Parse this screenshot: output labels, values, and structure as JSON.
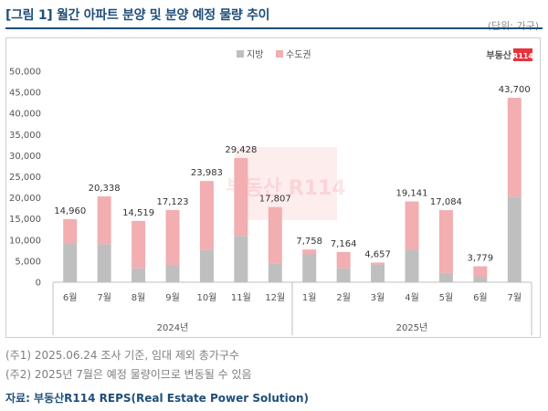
{
  "header": {
    "title": "[그림 1] 월간 아파트 분양 및 분양 예정 물량 추이",
    "unit": "(단위: 가구)"
  },
  "watermark": {
    "brand_text": "부동산",
    "brand_badge": "R114",
    "center_text": "부동산 R114"
  },
  "notes": [
    "(주1) 2025.06.24 조사 기준, 임대 제외 총가구수",
    "(주2) 2025년 7월은 예정 물량이므로 변동될 수 있음"
  ],
  "source": "자료: 부동산R114 REPS(Real Estate Power Solution)",
  "colors": {
    "regional": "#bfbfbf",
    "metro": "#f2aeb0",
    "title": "#1f4e79",
    "brand": "#e8343c"
  },
  "chart_data": {
    "type": "bar",
    "stacked": true,
    "categories": [
      "6월",
      "7월",
      "8월",
      "9월",
      "10월",
      "11월",
      "12월",
      "1월",
      "2월",
      "3월",
      "4월",
      "5월",
      "6월",
      "7월"
    ],
    "groups": [
      {
        "label": "2024년",
        "count": 7
      },
      {
        "label": "2025년",
        "count": 7
      }
    ],
    "series": [
      {
        "name": "지방",
        "values": [
          9300,
          9000,
          3300,
          4000,
          7600,
          11000,
          4500,
          6600,
          3300,
          4200,
          7700,
          2200,
          1300,
          20300
        ]
      },
      {
        "name": "수도권",
        "values": [
          5660,
          11338,
          11219,
          13123,
          16383,
          18428,
          13307,
          1158,
          3864,
          457,
          11441,
          14884,
          2479,
          23400
        ]
      }
    ],
    "totals": [
      14960,
      20338,
      14519,
      17123,
      23983,
      29428,
      17807,
      7758,
      7164,
      4657,
      19141,
      17084,
      3779,
      43700
    ],
    "total_labels": [
      "14,960",
      "20,338",
      "14,519",
      "17,123",
      "23,983",
      "29,428",
      "17,807",
      "7,758",
      "7,164",
      "4,657",
      "19,141",
      "17,084",
      "3,779",
      "43,700"
    ],
    "yticks": [
      "0",
      "5,000",
      "10,000",
      "15,000",
      "20,000",
      "25,000",
      "30,000",
      "35,000",
      "40,000",
      "45,000",
      "50,000"
    ],
    "ylim": [
      0,
      50000
    ],
    "xlabel": "",
    "ylabel": "",
    "legend_position": "top-center",
    "grid": false
  }
}
